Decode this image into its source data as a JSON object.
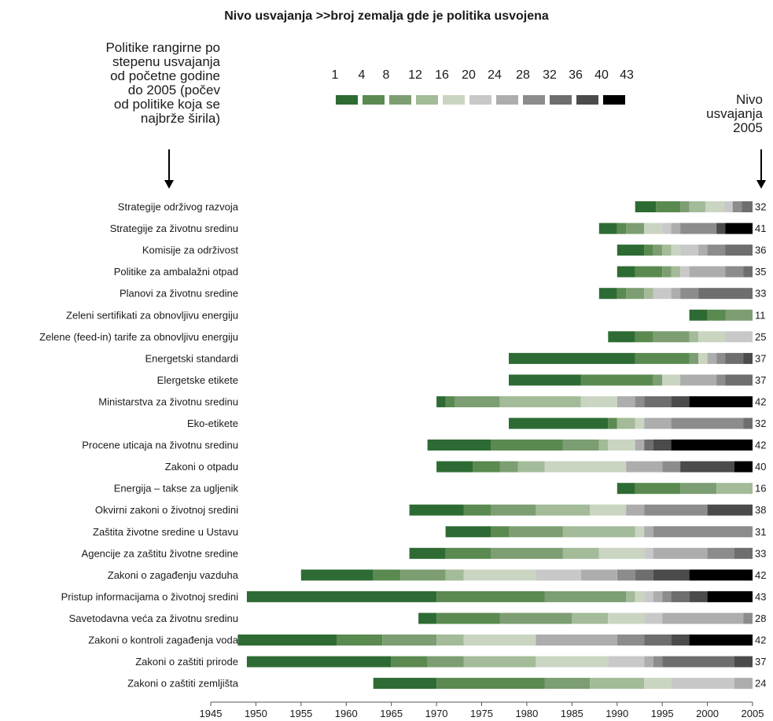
{
  "chart_data": {
    "type": "bar",
    "title": "Nivo usvajanja >>broj zemalja gde je politika usvojena",
    "left_note": "Politike rangirne po\nstepenu usvajanja\nod početne godine\ndo 2005 (počev\nod politike koja se\nnajbrže širila)",
    "right_note": "Nivo\nusvajanja\n2005",
    "xlim": [
      1945,
      2005
    ],
    "x_ticks": [
      "1945",
      "1950",
      "1955",
      "1960",
      "1965",
      "1970",
      "1975",
      "1980",
      "1985",
      "1990",
      "1995",
      "2000",
      "2005"
    ],
    "legend": {
      "labels": [
        "1",
        "4",
        "8",
        "12",
        "16",
        "20",
        "24",
        "28",
        "32",
        "36",
        "40",
        "43"
      ],
      "colors": [
        "#2e6b34",
        "#5a8a50",
        "#7c9e72",
        "#a3bb98",
        "#c9d5c0",
        "#c8c8c8",
        "#adadad",
        "#8c8c8c",
        "#6e6e6e",
        "#4b4b4b",
        "#000000"
      ]
    },
    "rows": [
      {
        "label": "Strategije održivog razvoja",
        "end": 32,
        "segments": [
          [
            1992,
            1994.3,
            0
          ],
          [
            1994.3,
            1997,
            1
          ],
          [
            1997,
            1998,
            2
          ],
          [
            1998,
            1999.8,
            3
          ],
          [
            1999.8,
            2001.8,
            4
          ],
          [
            2001.8,
            2002.8,
            5
          ],
          [
            2002.8,
            2003.8,
            7
          ],
          [
            2003.8,
            2005,
            8
          ]
        ]
      },
      {
        "label": "Strategije za životnu sredinu",
        "end": 41,
        "segments": [
          [
            1988,
            1990,
            0
          ],
          [
            1990,
            1991,
            1
          ],
          [
            1991,
            1993,
            2
          ],
          [
            1993,
            1995,
            4
          ],
          [
            1995,
            1996,
            5
          ],
          [
            1996,
            1997,
            6
          ],
          [
            1997,
            2001,
            7
          ],
          [
            2001,
            2002,
            9
          ],
          [
            2002,
            2005,
            10
          ]
        ]
      },
      {
        "label": "Komisije za održivost",
        "end": 36,
        "segments": [
          [
            1990,
            1993,
            0
          ],
          [
            1993,
            1994,
            1
          ],
          [
            1994,
            1995,
            2
          ],
          [
            1995,
            1996,
            3
          ],
          [
            1996,
            1997,
            4
          ],
          [
            1997,
            1999,
            5
          ],
          [
            1999,
            2000,
            6
          ],
          [
            2000,
            2002,
            7
          ],
          [
            2002,
            2005,
            8
          ]
        ]
      },
      {
        "label": "Politike za ambalažni otpad",
        "end": 35,
        "segments": [
          [
            1990,
            1992,
            0
          ],
          [
            1992,
            1995,
            1
          ],
          [
            1995,
            1996,
            2
          ],
          [
            1996,
            1997,
            3
          ],
          [
            1997,
            1998,
            5
          ],
          [
            1998,
            2002,
            6
          ],
          [
            2002,
            2004,
            7
          ],
          [
            2004,
            2005,
            8
          ]
        ]
      },
      {
        "label": "Planovi za životnu sredine",
        "end": 33,
        "segments": [
          [
            1988,
            1990,
            0
          ],
          [
            1990,
            1991,
            1
          ],
          [
            1991,
            1993,
            2
          ],
          [
            1993,
            1994,
            3
          ],
          [
            1994,
            1996,
            5
          ],
          [
            1996,
            1997,
            6
          ],
          [
            1997,
            1999,
            7
          ],
          [
            1999,
            2005,
            8
          ]
        ]
      },
      {
        "label": "Zeleni sertifikati za obnovljivu energiju",
        "end": 11,
        "segments": [
          [
            1998,
            2000,
            0
          ],
          [
            2000,
            2002,
            1
          ],
          [
            2002,
            2005,
            2
          ]
        ]
      },
      {
        "label": "Zelene (feed-in) tarife za obnovljivu energiju",
        "end": 25,
        "segments": [
          [
            1989,
            1992,
            0
          ],
          [
            1992,
            1994,
            1
          ],
          [
            1994,
            1998,
            2
          ],
          [
            1998,
            1999,
            3
          ],
          [
            1999,
            2002,
            4
          ],
          [
            2002,
            2005,
            5
          ]
        ]
      },
      {
        "label": "Energetski standardi",
        "end": 37,
        "segments": [
          [
            1978,
            1992,
            0
          ],
          [
            1992,
            1998,
            1
          ],
          [
            1998,
            1999,
            2
          ],
          [
            1999,
            2000,
            4
          ],
          [
            2000,
            2001,
            6
          ],
          [
            2001,
            2002,
            7
          ],
          [
            2002,
            2004,
            8
          ],
          [
            2004,
            2005,
            9
          ]
        ]
      },
      {
        "label": "Elergetske etikete",
        "end": 37,
        "segments": [
          [
            1978,
            1986,
            0
          ],
          [
            1986,
            1994,
            1
          ],
          [
            1994,
            1995,
            2
          ],
          [
            1995,
            1997,
            4
          ],
          [
            1997,
            2001,
            6
          ],
          [
            2001,
            2002,
            7
          ],
          [
            2002,
            2005,
            8
          ]
        ]
      },
      {
        "label": "Ministarstva za životnu sredinu",
        "end": 42,
        "segments": [
          [
            1970,
            1971,
            0
          ],
          [
            1971,
            1972,
            1
          ],
          [
            1972,
            1977,
            2
          ],
          [
            1977,
            1986,
            3
          ],
          [
            1986,
            1987,
            4
          ],
          [
            1987,
            1990,
            4
          ],
          [
            1990,
            1992,
            6
          ],
          [
            1992,
            1993,
            7
          ],
          [
            1993,
            1996,
            8
          ],
          [
            1996,
            1998,
            9
          ],
          [
            1998,
            2005,
            10
          ]
        ]
      },
      {
        "label": "Eko-etikete",
        "end": 32,
        "segments": [
          [
            1978,
            1989,
            0
          ],
          [
            1989,
            1990,
            1
          ],
          [
            1990,
            1992,
            3
          ],
          [
            1992,
            1993,
            4
          ],
          [
            1993,
            1996,
            6
          ],
          [
            1996,
            2004,
            7
          ],
          [
            2004,
            2005,
            8
          ]
        ]
      },
      {
        "label": "Procene uticaja na životnu sredinu",
        "end": 42,
        "segments": [
          [
            1969,
            1976,
            0
          ],
          [
            1976,
            1984,
            1
          ],
          [
            1984,
            1988,
            2
          ],
          [
            1988,
            1989,
            3
          ],
          [
            1989,
            1992,
            4
          ],
          [
            1992,
            1993,
            6
          ],
          [
            1993,
            1994,
            8
          ],
          [
            1994,
            1996,
            9
          ],
          [
            1996,
            2005,
            10
          ]
        ]
      },
      {
        "label": "Zakoni o otpadu",
        "end": 40,
        "segments": [
          [
            1970,
            1974,
            0
          ],
          [
            1974,
            1977,
            1
          ],
          [
            1977,
            1979,
            2
          ],
          [
            1979,
            1982,
            3
          ],
          [
            1982,
            1991,
            4
          ],
          [
            1991,
            1995,
            6
          ],
          [
            1995,
            1997,
            7
          ],
          [
            1997,
            2003,
            9
          ],
          [
            2003,
            2005,
            10
          ]
        ]
      },
      {
        "label": "Energija – takse za ugljenik",
        "end": 16,
        "segments": [
          [
            1990,
            1992,
            0
          ],
          [
            1992,
            1997,
            1
          ],
          [
            1997,
            2001,
            2
          ],
          [
            2001,
            2005,
            3
          ]
        ]
      },
      {
        "label": "Okvirni zakoni o životnoj sredini",
        "end": 38,
        "segments": [
          [
            1967,
            1973,
            0
          ],
          [
            1973,
            1976,
            1
          ],
          [
            1976,
            1981,
            2
          ],
          [
            1981,
            1987,
            3
          ],
          [
            1987,
            1991,
            4
          ],
          [
            1991,
            1993,
            6
          ],
          [
            1993,
            2000,
            7
          ],
          [
            2000,
            2005,
            9
          ]
        ]
      },
      {
        "label": "Zaštita životne sredine u Ustavu",
        "end": 31,
        "segments": [
          [
            1971,
            1976,
            0
          ],
          [
            1976,
            1978,
            1
          ],
          [
            1978,
            1984,
            2
          ],
          [
            1984,
            1992,
            3
          ],
          [
            1992,
            1993,
            4
          ],
          [
            1993,
            1994,
            6
          ],
          [
            1994,
            2005,
            7
          ]
        ]
      },
      {
        "label": "Agencije za zaštitu životne sredine",
        "end": 33,
        "segments": [
          [
            1967,
            1971,
            0
          ],
          [
            1971,
            1976,
            1
          ],
          [
            1976,
            1984,
            2
          ],
          [
            1984,
            1988,
            3
          ],
          [
            1988,
            1993,
            4
          ],
          [
            1993,
            1994,
            5
          ],
          [
            1994,
            2000,
            6
          ],
          [
            2000,
            2003,
            7
          ],
          [
            2003,
            2005,
            8
          ]
        ]
      },
      {
        "label": "Zakoni o zagađenju vazduha",
        "end": 42,
        "segments": [
          [
            1955,
            1963,
            0
          ],
          [
            1963,
            1966,
            1
          ],
          [
            1966,
            1971,
            2
          ],
          [
            1971,
            1973,
            3
          ],
          [
            1973,
            1981,
            4
          ],
          [
            1981,
            1986,
            5
          ],
          [
            1986,
            1990,
            6
          ],
          [
            1990,
            1992,
            7
          ],
          [
            1992,
            1994,
            8
          ],
          [
            1994,
            1998,
            9
          ],
          [
            1998,
            2005,
            10
          ]
        ]
      },
      {
        "label": "Pristup informacijama o životnoj sredini",
        "end": 43,
        "segments": [
          [
            1949,
            1970,
            0
          ],
          [
            1970,
            1982,
            1
          ],
          [
            1982,
            1991,
            2
          ],
          [
            1991,
            1992,
            3
          ],
          [
            1992,
            1993,
            4
          ],
          [
            1993,
            1994,
            5
          ],
          [
            1994,
            1995,
            6
          ],
          [
            1995,
            1996,
            7
          ],
          [
            1996,
            1998,
            8
          ],
          [
            1998,
            2000,
            9
          ],
          [
            2000,
            2005,
            10
          ]
        ]
      },
      {
        "label": "Savetodavna veća za životnu sredinu",
        "end": 28,
        "segments": [
          [
            1968,
            1970,
            0
          ],
          [
            1970,
            1977,
            1
          ],
          [
            1977,
            1985,
            2
          ],
          [
            1985,
            1989,
            3
          ],
          [
            1989,
            1993,
            4
          ],
          [
            1993,
            1995,
            5
          ],
          [
            1995,
            2004,
            6
          ],
          [
            2004,
            2005,
            7
          ]
        ]
      },
      {
        "label": "Zakoni o kontroli zagađenja voda",
        "end": 42,
        "segments": [
          [
            1948,
            1959,
            0
          ],
          [
            1959,
            1964,
            1
          ],
          [
            1964,
            1970,
            2
          ],
          [
            1970,
            1973,
            3
          ],
          [
            1973,
            1981,
            4
          ],
          [
            1981,
            1990,
            6
          ],
          [
            1990,
            1993,
            7
          ],
          [
            1993,
            1996,
            8
          ],
          [
            1996,
            1998,
            9
          ],
          [
            1998,
            2005,
            10
          ]
        ]
      },
      {
        "label": "Zakoni o zaštiti prirode",
        "end": 37,
        "segments": [
          [
            1949,
            1965,
            0
          ],
          [
            1965,
            1969,
            1
          ],
          [
            1969,
            1973,
            2
          ],
          [
            1973,
            1981,
            3
          ],
          [
            1981,
            1989,
            4
          ],
          [
            1989,
            1993,
            5
          ],
          [
            1993,
            1994,
            6
          ],
          [
            1994,
            1995,
            7
          ],
          [
            1995,
            2003,
            8
          ],
          [
            2003,
            2005,
            9
          ]
        ]
      },
      {
        "label": "Zakoni o zaštiti zemljišta",
        "end": 24,
        "segments": [
          [
            1963,
            1970,
            0
          ],
          [
            1970,
            1982,
            1
          ],
          [
            1982,
            1987,
            2
          ],
          [
            1987,
            1993,
            3
          ],
          [
            1993,
            1996,
            4
          ],
          [
            1996,
            2003,
            5
          ],
          [
            2003,
            2005,
            6
          ]
        ]
      }
    ]
  }
}
